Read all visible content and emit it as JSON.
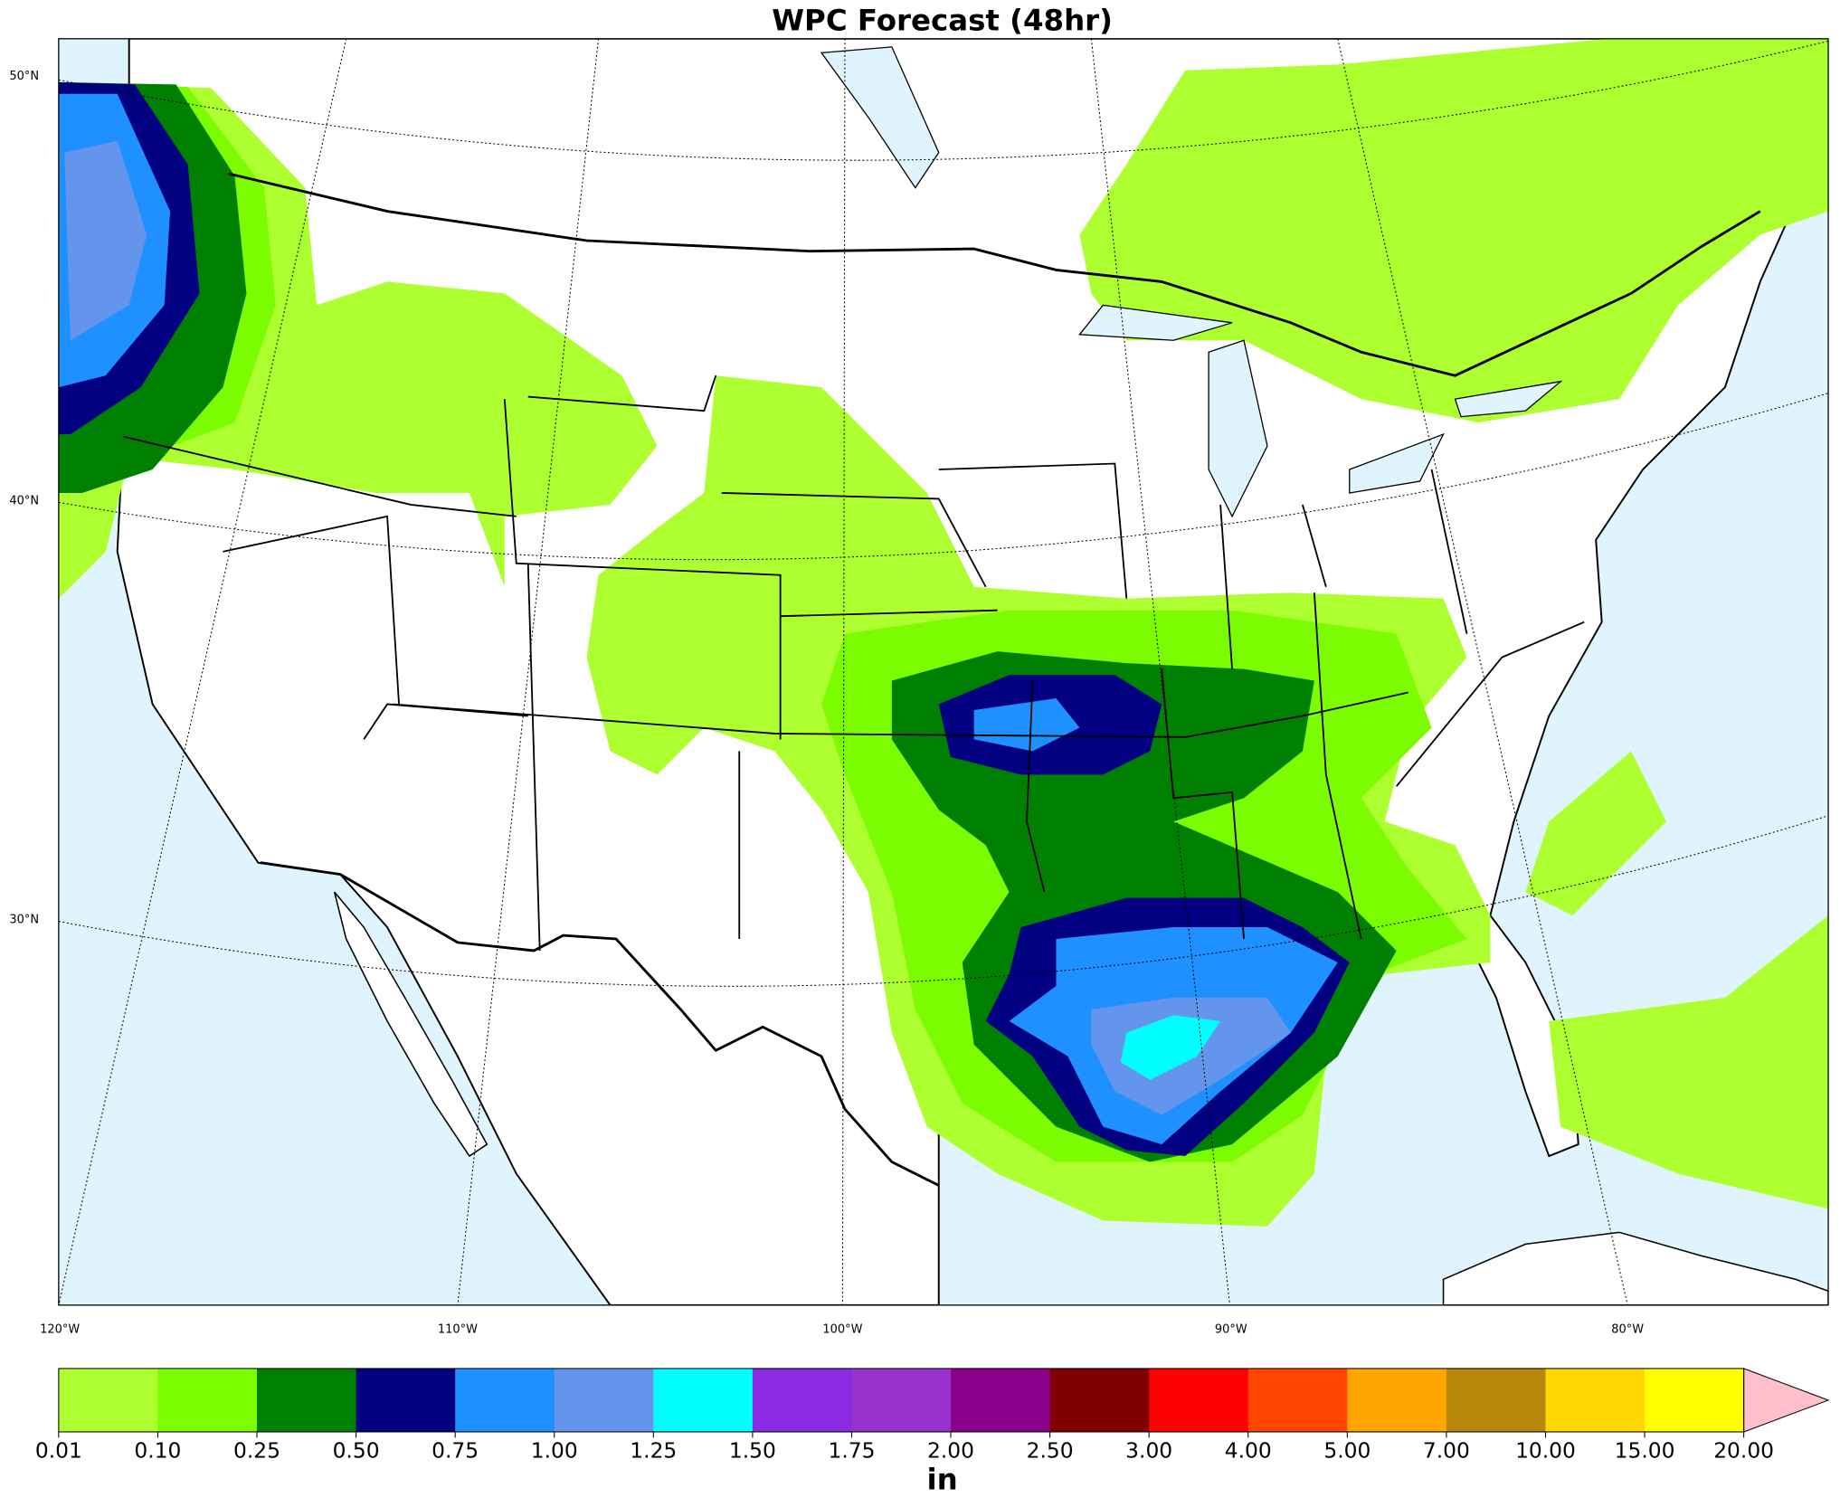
{
  "title": "WPC Forecast (48hr)",
  "map": {
    "lat_labels": [
      "50°N",
      "40°N",
      "30°N"
    ],
    "lon_labels": [
      "120°W",
      "110°W",
      "100°W",
      "90°W",
      "80°W"
    ],
    "land_color": "#ffffff",
    "water_color": "#dff4fd"
  },
  "colorbar": {
    "label": "in",
    "bounds": [
      0.01,
      {
        "value": 0.1,
        "label": "0.10"
      },
      0.25,
      {
        "value": 0.5,
        "label": "0.50"
      },
      0.75,
      {
        "value": 1,
        "label": "1.00"
      },
      1.25,
      {
        "value": 1.5,
        "label": "1.50"
      },
      1.75,
      {
        "value": 2,
        "label": "2.00"
      },
      {
        "value": 2.5,
        "label": "2.50"
      },
      {
        "value": 3,
        "label": "3.00"
      },
      {
        "value": 4,
        "label": "4.00"
      },
      {
        "value": 5,
        "label": "5.00"
      },
      {
        "value": 7,
        "label": "7.00"
      },
      {
        "value": 10,
        "label": "10.00"
      },
      {
        "value": 15,
        "label": "15.00"
      },
      {
        "value": 20,
        "label": "20.00"
      }
    ],
    "colors": [
      "#adff2f",
      "#7cfc00",
      "#008000",
      "#000080",
      "#1e90ff",
      "#6495ed",
      "#00ffff",
      "#8a2be2",
      "#9932cc",
      "#8b008b",
      "#800000",
      "#ff0000",
      "#ff4500",
      "#ffa500",
      "#b8860b",
      "#ffd700",
      "#ffff00"
    ],
    "extend_color": "#ffc0cb"
  }
}
